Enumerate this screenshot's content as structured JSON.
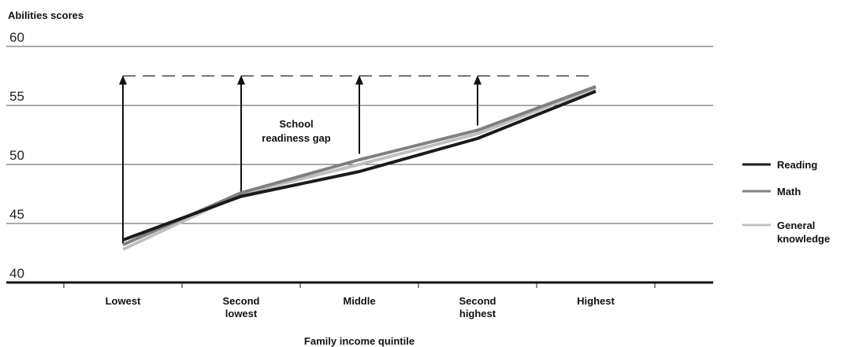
{
  "chart_data": {
    "type": "line",
    "title": "",
    "ylabel": "Abilities scores",
    "xlabel": "Family income quintile",
    "ylim": [
      40,
      60
    ],
    "yticks": [
      "40",
      "45",
      "50",
      "55",
      "60"
    ],
    "categories": [
      [
        "Lowest"
      ],
      [
        "Second",
        "lowest"
      ],
      [
        "Middle"
      ],
      [
        "Second",
        "highest"
      ],
      [
        "Highest"
      ]
    ],
    "series": [
      {
        "name": "Reading",
        "legend_lines": [
          "Reading"
        ],
        "color": "#1a1a1a",
        "values": [
          43.6,
          47.3,
          49.4,
          52.2,
          56.2
        ]
      },
      {
        "name": "Math",
        "legend_lines": [
          "Math"
        ],
        "color": "#808080",
        "values": [
          43.2,
          47.6,
          50.4,
          52.9,
          56.6
        ]
      },
      {
        "name": "General knowledge",
        "legend_lines": [
          "General",
          "knowledge"
        ],
        "color": "#c0c0c0",
        "values": [
          42.8,
          47.5,
          50.0,
          52.6,
          56.5
        ]
      }
    ],
    "reference_line": {
      "value": 57.5,
      "style": "dashed"
    },
    "gap_arrows": [
      {
        "category_index": 0,
        "from": 43.3,
        "to": 57.5
      },
      {
        "category_index": 1,
        "from": 47.6,
        "to": 57.5
      },
      {
        "category_index": 2,
        "from": 50.9,
        "to": 57.5
      },
      {
        "category_index": 3,
        "from": 53.3,
        "to": 57.5
      }
    ],
    "annotation": [
      "School",
      "readiness gap"
    ],
    "grid": true,
    "legend_position": "right"
  }
}
